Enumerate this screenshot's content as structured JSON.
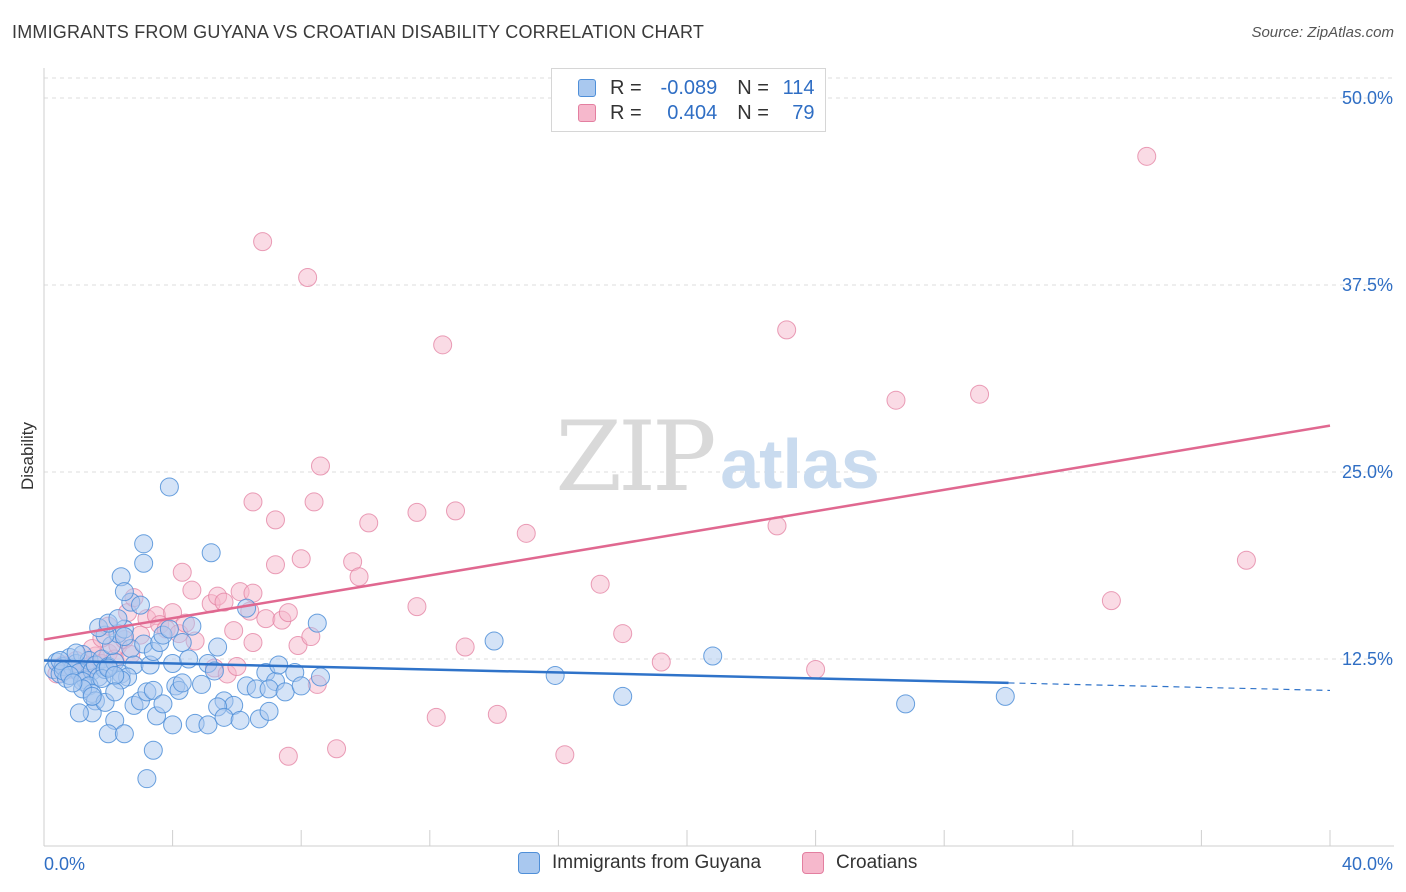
{
  "title": "IMMIGRANTS FROM GUYANA VS CROATIAN DISABILITY CORRELATION CHART",
  "source": "Source: ZipAtlas.com",
  "watermark": {
    "zip": "ZIP",
    "atlas": "atlas"
  },
  "legend_top": {
    "rows": [
      {
        "r_label": "R =",
        "r_value": "-0.089",
        "n_label": "N =",
        "n_value": "114"
      },
      {
        "r_label": "R =",
        "r_value": "0.404",
        "n_label": "N =",
        "n_value": "79"
      }
    ]
  },
  "legend_bottom": {
    "series1": "Immigrants from Guyana",
    "series2": "Croatians"
  },
  "colors": {
    "blue_fill": "#a9c8ef",
    "blue_stroke": "#4f8fd8",
    "blue_line": "#2f73c9",
    "pink_fill": "#f6b8cc",
    "pink_stroke": "#e37fa0",
    "pink_line": "#e06890",
    "axis_label": "#2f6ec4",
    "grid": "#dedede"
  },
  "chart_data": {
    "type": "scatter",
    "title": "IMMIGRANTS FROM GUYANA VS CROATIAN DISABILITY CORRELATION CHART",
    "xlabel": "",
    "ylabel": "Disability",
    "xlim": [
      0,
      40
    ],
    "ylim": [
      0,
      50
    ],
    "x_tick_labels": [
      "0.0%",
      "40.0%"
    ],
    "y_ticks": [
      12.5,
      25.0,
      37.5,
      50.0
    ],
    "y_tick_labels": [
      "12.5%",
      "25.0%",
      "37.5%",
      "50.0%"
    ],
    "grid": true,
    "legend_position": "top-center",
    "series": [
      {
        "name": "Immigrants from Guyana",
        "R": -0.089,
        "N": 114,
        "trend": {
          "x0": 0,
          "y0": 12.4,
          "x1": 30,
          "y1": 10.9,
          "dashed_to_x": 40,
          "dashed_to_y": 10.4
        },
        "points": [
          [
            0.3,
            11.8
          ],
          [
            0.4,
            12.3
          ],
          [
            0.5,
            11.5
          ],
          [
            0.6,
            12.0
          ],
          [
            0.7,
            11.2
          ],
          [
            0.8,
            12.6
          ],
          [
            0.9,
            11.9
          ],
          [
            1.0,
            12.2
          ],
          [
            1.1,
            11.6
          ],
          [
            1.2,
            12.8
          ],
          [
            1.3,
            11.1
          ],
          [
            1.4,
            12.4
          ],
          [
            1.5,
            11.7
          ],
          [
            1.6,
            12.1
          ],
          [
            1.7,
            11.3
          ],
          [
            1.8,
            12.5
          ],
          [
            1.9,
            11.8
          ],
          [
            2.0,
            12.0
          ],
          [
            2.2,
            12.3
          ],
          [
            2.4,
            11.5
          ],
          [
            0.5,
            12.4
          ],
          [
            0.6,
            11.7
          ],
          [
            0.8,
            11.4
          ],
          [
            1.0,
            12.9
          ],
          [
            1.2,
            11.0
          ],
          [
            1.4,
            10.7
          ],
          [
            1.5,
            10.2
          ],
          [
            1.6,
            9.7
          ],
          [
            1.5,
            8.9
          ],
          [
            1.8,
            11.2
          ],
          [
            1.9,
            9.6
          ],
          [
            2.0,
            11.9
          ],
          [
            2.1,
            13.4
          ],
          [
            2.3,
            14.2
          ],
          [
            2.5,
            14.5
          ],
          [
            2.7,
            13.2
          ],
          [
            2.8,
            12.1
          ],
          [
            2.6,
            11.3
          ],
          [
            2.4,
            11.1
          ],
          [
            2.2,
            11.4
          ],
          [
            1.9,
            14.1
          ],
          [
            1.7,
            14.6
          ],
          [
            2.0,
            14.9
          ],
          [
            2.3,
            15.2
          ],
          [
            2.5,
            14.0
          ],
          [
            2.7,
            16.3
          ],
          [
            3.0,
            16.1
          ],
          [
            3.1,
            13.5
          ],
          [
            3.3,
            12.1
          ],
          [
            3.4,
            13.0
          ],
          [
            3.6,
            13.6
          ],
          [
            3.7,
            14.1
          ],
          [
            3.9,
            14.5
          ],
          [
            4.0,
            12.2
          ],
          [
            4.1,
            10.7
          ],
          [
            4.3,
            13.6
          ],
          [
            4.5,
            12.5
          ],
          [
            4.6,
            14.7
          ],
          [
            2.4,
            18.0
          ],
          [
            2.5,
            17.0
          ],
          [
            3.1,
            18.9
          ],
          [
            3.1,
            20.2
          ],
          [
            3.9,
            24.0
          ],
          [
            5.2,
            19.6
          ],
          [
            5.1,
            12.2
          ],
          [
            5.3,
            11.7
          ],
          [
            5.4,
            13.3
          ],
          [
            4.9,
            10.8
          ],
          [
            5.6,
            9.7
          ],
          [
            5.9,
            9.4
          ],
          [
            6.3,
            10.7
          ],
          [
            6.6,
            10.5
          ],
          [
            6.9,
            11.6
          ],
          [
            7.2,
            11.0
          ],
          [
            7.0,
            10.5
          ],
          [
            7.5,
            10.3
          ],
          [
            7.8,
            11.6
          ],
          [
            8.0,
            10.7
          ],
          [
            8.5,
            14.9
          ],
          [
            8.6,
            11.3
          ],
          [
            2.2,
            8.4
          ],
          [
            2.0,
            7.5
          ],
          [
            2.5,
            7.5
          ],
          [
            2.8,
            9.4
          ],
          [
            3.0,
            9.7
          ],
          [
            3.2,
            10.3
          ],
          [
            3.4,
            10.4
          ],
          [
            3.5,
            8.7
          ],
          [
            3.7,
            9.5
          ],
          [
            4.0,
            8.1
          ],
          [
            4.2,
            10.4
          ],
          [
            4.3,
            10.9
          ],
          [
            4.7,
            8.2
          ],
          [
            5.1,
            8.1
          ],
          [
            5.4,
            9.3
          ],
          [
            5.6,
            8.6
          ],
          [
            6.1,
            8.4
          ],
          [
            6.7,
            8.5
          ],
          [
            7.0,
            9.0
          ],
          [
            3.4,
            6.4
          ],
          [
            3.2,
            4.5
          ],
          [
            1.2,
            10.5
          ],
          [
            1.5,
            10.0
          ],
          [
            1.1,
            8.9
          ],
          [
            0.9,
            10.9
          ],
          [
            2.2,
            10.3
          ],
          [
            6.3,
            15.9
          ],
          [
            7.3,
            12.1
          ],
          [
            14.0,
            13.7
          ],
          [
            15.9,
            11.4
          ],
          [
            18.0,
            10.0
          ],
          [
            20.8,
            12.7
          ],
          [
            26.8,
            9.5
          ],
          [
            29.9,
            10.0
          ]
        ]
      },
      {
        "name": "Croatians",
        "R": 0.404,
        "N": 79,
        "trend": {
          "x0": 0,
          "y0": 13.8,
          "x1": 40,
          "y1": 28.1
        },
        "points": [
          [
            0.4,
            11.5
          ],
          [
            0.6,
            12.1
          ],
          [
            0.8,
            11.8
          ],
          [
            1.0,
            12.4
          ],
          [
            1.2,
            11.6
          ],
          [
            1.4,
            12.0
          ],
          [
            1.6,
            12.7
          ],
          [
            1.8,
            12.2
          ],
          [
            2.0,
            12.9
          ],
          [
            2.2,
            12.5
          ],
          [
            1.5,
            13.2
          ],
          [
            1.8,
            13.9
          ],
          [
            2.0,
            14.7
          ],
          [
            2.3,
            13.4
          ],
          [
            2.5,
            13.8
          ],
          [
            2.7,
            12.8
          ],
          [
            2.6,
            15.6
          ],
          [
            2.8,
            16.6
          ],
          [
            3.0,
            14.1
          ],
          [
            3.2,
            15.2
          ],
          [
            3.5,
            15.4
          ],
          [
            3.6,
            14.8
          ],
          [
            3.8,
            14.5
          ],
          [
            4.0,
            15.6
          ],
          [
            4.2,
            14.2
          ],
          [
            4.4,
            14.9
          ],
          [
            4.7,
            13.7
          ],
          [
            4.3,
            18.3
          ],
          [
            4.6,
            17.1
          ],
          [
            5.2,
            16.2
          ],
          [
            5.4,
            16.7
          ],
          [
            5.6,
            16.3
          ],
          [
            5.9,
            14.4
          ],
          [
            6.1,
            17.0
          ],
          [
            6.4,
            15.7
          ],
          [
            6.5,
            16.9
          ],
          [
            5.3,
            11.9
          ],
          [
            5.7,
            11.5
          ],
          [
            6.0,
            12.0
          ],
          [
            6.5,
            13.6
          ],
          [
            6.9,
            15.2
          ],
          [
            7.2,
            18.8
          ],
          [
            7.4,
            15.1
          ],
          [
            7.6,
            15.6
          ],
          [
            7.9,
            13.4
          ],
          [
            8.0,
            19.2
          ],
          [
            8.3,
            14.0
          ],
          [
            8.5,
            10.8
          ],
          [
            6.5,
            23.0
          ],
          [
            7.2,
            21.8
          ],
          [
            8.4,
            23.0
          ],
          [
            8.6,
            25.4
          ],
          [
            9.6,
            19.0
          ],
          [
            9.8,
            18.0
          ],
          [
            10.1,
            21.6
          ],
          [
            11.6,
            16.0
          ],
          [
            11.6,
            22.3
          ],
          [
            12.2,
            8.6
          ],
          [
            12.8,
            22.4
          ],
          [
            13.1,
            13.3
          ],
          [
            14.1,
            8.8
          ],
          [
            15.0,
            20.9
          ],
          [
            16.2,
            6.1
          ],
          [
            17.3,
            17.5
          ],
          [
            18.0,
            14.2
          ],
          [
            19.2,
            12.3
          ],
          [
            24.0,
            11.8
          ],
          [
            22.8,
            21.4
          ],
          [
            23.1,
            34.5
          ],
          [
            9.1,
            6.5
          ],
          [
            7.6,
            6.0
          ],
          [
            12.4,
            33.5
          ],
          [
            6.8,
            40.4
          ],
          [
            8.2,
            38.0
          ],
          [
            26.5,
            29.8
          ],
          [
            29.1,
            30.2
          ],
          [
            33.2,
            16.4
          ],
          [
            34.3,
            46.1
          ],
          [
            37.4,
            19.1
          ]
        ]
      }
    ]
  }
}
